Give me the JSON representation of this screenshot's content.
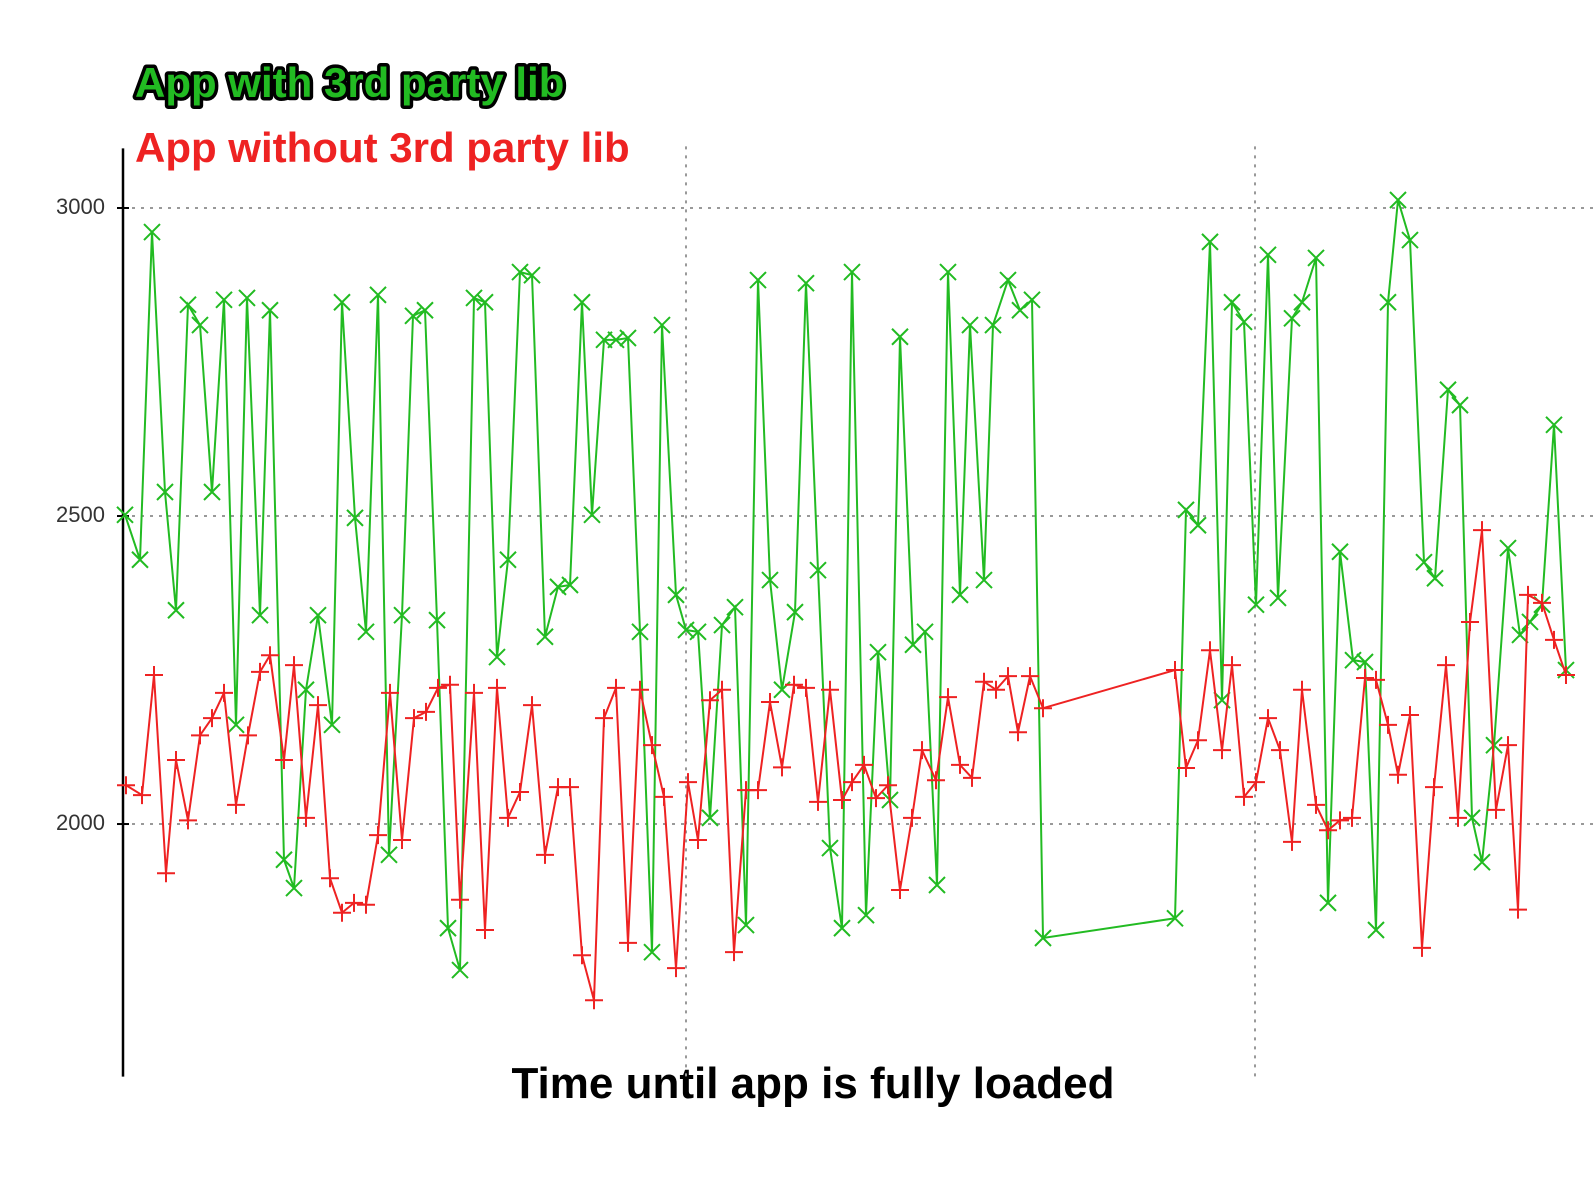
{
  "chart_data": {
    "type": "line",
    "xlabel": "Time until app is fully loaded",
    "legend": "top-left",
    "grid": true,
    "xlim": [
      0,
      1445
    ],
    "xticks": [
      563,
      1132
    ],
    "ylim": [
      1590,
      3100
    ],
    "yticks": [
      2000,
      2500,
      3000
    ],
    "series": [
      {
        "name": "App with 3rd party lib",
        "color": "#22bb22",
        "marker": "x",
        "x": [
          2,
          17,
          29,
          42,
          53,
          65,
          77,
          89,
          101,
          113,
          124,
          137,
          147,
          161,
          171,
          183,
          195,
          209,
          219,
          232,
          243,
          255,
          266,
          279,
          290,
          302,
          314,
          325,
          337,
          351,
          362,
          374,
          385,
          397,
          409,
          422,
          435,
          447,
          459,
          469,
          481,
          493,
          505,
          517,
          529,
          539,
          553,
          563,
          575,
          587,
          599,
          612,
          623,
          635,
          647,
          659,
          672,
          683,
          695,
          707,
          719,
          729,
          743,
          755,
          767,
          777,
          790,
          802,
          814,
          825,
          837,
          847,
          861,
          870,
          885,
          897,
          909,
          920,
          1052,
          1063,
          1075,
          1087,
          1099,
          1109,
          1121,
          1133,
          1145,
          1155,
          1169,
          1179,
          1193,
          1205,
          1217,
          1230,
          1242,
          1253,
          1265,
          1275,
          1287,
          1301,
          1312,
          1325,
          1337,
          1349,
          1359,
          1371,
          1385,
          1397,
          1407,
          1419,
          1431,
          1443
        ],
        "values": [
          2502,
          2429,
          2961,
          2539,
          2347,
          2843,
          2810,
          2539,
          2851,
          2161,
          2854,
          2339,
          2834,
          1942,
          1896,
          2218,
          2339,
          2161,
          2847,
          2497,
          2312,
          2859,
          1950,
          2339,
          2825,
          2834,
          2331,
          1831,
          1763,
          2854,
          2847,
          2271,
          2429,
          2896,
          2891,
          2304,
          2385,
          2388,
          2847,
          2502,
          2786,
          2786,
          2789,
          2312,
          1792,
          2810,
          2372,
          2315,
          2312,
          2010,
          2323,
          2352,
          1836,
          2883,
          2396,
          2218,
          2344,
          2878,
          2412,
          1961,
          1831,
          2896,
          1852,
          2279,
          2039,
          2791,
          2291,
          2312,
          1901,
          2896,
          2372,
          2810,
          2396,
          2810,
          2883,
          2834,
          2851,
          1815,
          1847,
          2510,
          2485,
          2945,
          2201,
          2847,
          2815,
          2356,
          2924,
          2367,
          2821,
          2847,
          2919,
          1872,
          2442,
          2266,
          2263,
          1828,
          2847,
          3013,
          2948,
          2425,
          2399,
          2705,
          2680,
          2010,
          1938,
          2128,
          2448,
          2307,
          2328,
          2356,
          2648,
          2250
        ]
      },
      {
        "name": "App without 3rd party lib",
        "color": "#ee2222",
        "marker": "+",
        "x": [
          3,
          19,
          31,
          43,
          53,
          65,
          77,
          89,
          101,
          113,
          125,
          137,
          147,
          161,
          171,
          183,
          195,
          207,
          219,
          231,
          243,
          255,
          267,
          279,
          291,
          303,
          315,
          327,
          337,
          351,
          362,
          374,
          385,
          397,
          409,
          422,
          435,
          447,
          459,
          471,
          481,
          493,
          505,
          517,
          529,
          541,
          553,
          565,
          575,
          587,
          599,
          611,
          623,
          635,
          647,
          659,
          671,
          683,
          695,
          707,
          719,
          729,
          741,
          753,
          765,
          777,
          789,
          799,
          813,
          825,
          837,
          849,
          861,
          873,
          885,
          895,
          907,
          920,
          1052,
          1063,
          1075,
          1087,
          1099,
          1109,
          1121,
          1133,
          1145,
          1157,
          1169,
          1179,
          1193,
          1205,
          1217,
          1229,
          1242,
          1253,
          1265,
          1275,
          1287,
          1299,
          1311,
          1323,
          1335,
          1347,
          1359,
          1373,
          1385,
          1395,
          1405,
          1419,
          1431,
          1443
        ],
        "values": [
          2063,
          2047,
          2242,
          1920,
          2104,
          2006,
          2144,
          2172,
          2213,
          2031,
          2144,
          2247,
          2274,
          2104,
          2258,
          2010,
          2193,
          1912,
          1856,
          1872,
          1869,
          1982,
          2213,
          1974,
          2172,
          2182,
          2221,
          2226,
          1877,
          2213,
          1828,
          2221,
          2010,
          2052,
          2193,
          1950,
          2060,
          2060,
          1787,
          1714,
          2172,
          2221,
          1807,
          2218,
          2128,
          2044,
          1766,
          2068,
          1974,
          2201,
          2218,
          1792,
          2055,
          2055,
          2198,
          2092,
          2226,
          2221,
          2036,
          2218,
          2039,
          2068,
          2096,
          2042,
          2063,
          1893,
          2010,
          2120,
          2071,
          2206,
          2096,
          2075,
          2231,
          2218,
          2240,
          2149,
          2240,
          2188,
          2250,
          2091,
          2136,
          2282,
          2120,
          2258,
          2044,
          2068,
          2172,
          2120,
          1971,
          2218,
          2031,
          1990,
          2006,
          2010,
          2237,
          2234,
          2161,
          2080,
          2177,
          1799,
          2060,
          2258,
          2010,
          2328,
          2477,
          2023,
          2128,
          1861,
          2372,
          2359,
          2299,
          2242
        ]
      }
    ]
  }
}
